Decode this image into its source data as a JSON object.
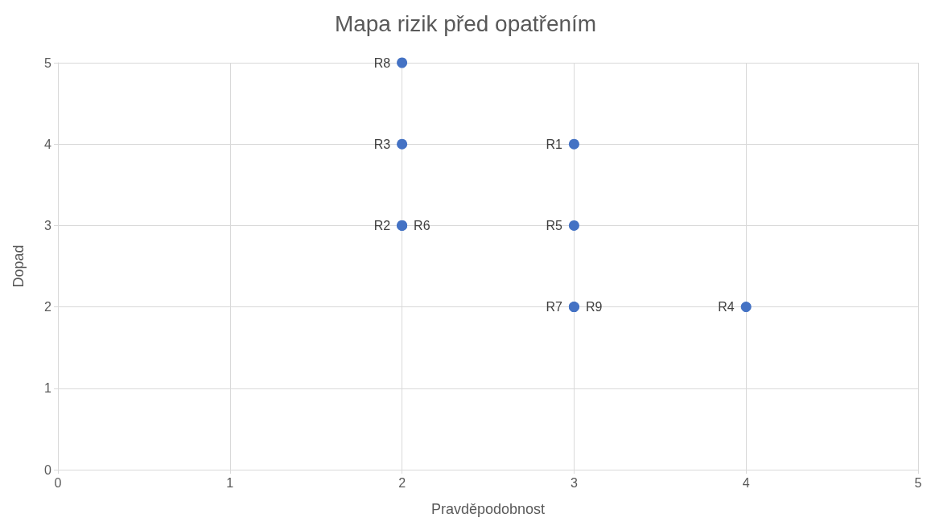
{
  "chart_data": {
    "type": "scatter",
    "title": "Mapa rizik před opatřením",
    "xlabel": "Pravděpodobnost",
    "ylabel": "Dopad",
    "x": [
      3,
      2,
      2,
      4,
      3,
      2,
      3,
      2,
      3
    ],
    "values": [
      4,
      3,
      4,
      2,
      3,
      3,
      2,
      5,
      2
    ],
    "value_labels": [
      "R1",
      "R2",
      "R3",
      "R4",
      "R5",
      "R6",
      "R7",
      "R8",
      "R9"
    ],
    "color": "#4472c4",
    "marker": "circle",
    "xlim": [
      0,
      5
    ],
    "xticks": [
      0,
      1,
      2,
      3,
      4,
      5
    ],
    "ylim": [
      0,
      5
    ],
    "yticks": [
      0,
      1,
      2,
      3,
      4,
      5
    ],
    "grid": true
  }
}
